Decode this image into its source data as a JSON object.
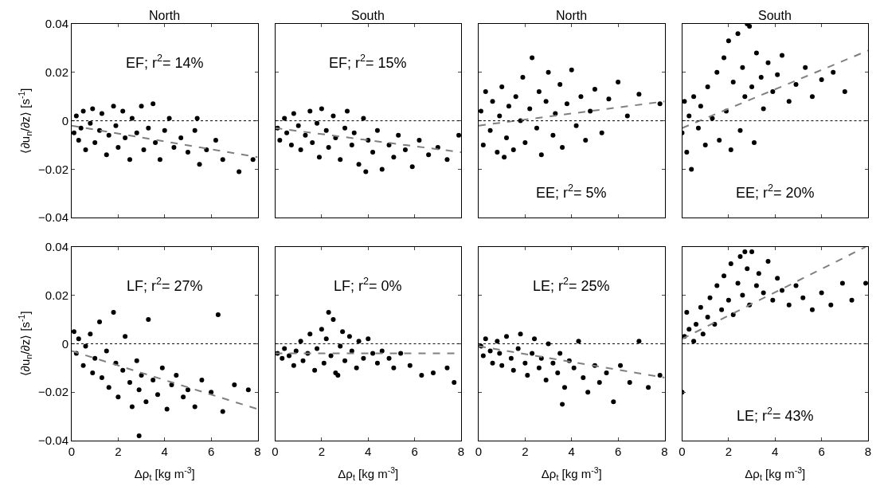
{
  "chart_data": [
    {
      "type": "scatter",
      "title": "North",
      "ylabel": "⟨∂u$_{n}$/∂z⟩ [s$^{-1}$]",
      "xlim": [
        0,
        8
      ],
      "xticks": [
        0,
        2,
        4,
        6,
        8
      ],
      "ylim": [
        -0.04,
        0.04
      ],
      "yticks": [
        -0.04,
        -0.02,
        0,
        0.02,
        0.04
      ],
      "tick_labels": "y",
      "annotations": [
        "EF; r$^{2}$= 14%"
      ],
      "ref_lines": [
        {
          "axis": "y",
          "value": 0,
          "color": "#000000",
          "line_style": "dotted"
        }
      ],
      "series": [
        {
          "type": "scatter",
          "color": "#000000",
          "marker": "circle",
          "x": [
            0.1,
            0.2,
            0.3,
            0.4,
            0.5,
            0.6,
            0.8,
            0.9,
            1.0,
            1.2,
            1.3,
            1.5,
            1.6,
            1.8,
            1.9,
            2.0,
            2.2,
            2.3,
            2.5,
            2.6,
            2.8,
            3.0,
            3.1,
            3.3,
            3.5,
            3.6,
            3.8,
            4.0,
            4.2,
            4.4,
            4.7,
            5.0,
            5.3,
            5.5,
            5.8,
            6.2,
            6.5,
            7.2,
            7.8,
            5.4
          ],
          "values": [
            -0.005,
            0.002,
            -0.008,
            -0.003,
            0.004,
            -0.012,
            -0.001,
            0.005,
            -0.009,
            -0.004,
            0.003,
            -0.014,
            -0.006,
            0.006,
            -0.002,
            -0.011,
            0.004,
            -0.007,
            -0.016,
            0.001,
            -0.005,
            0.006,
            -0.012,
            -0.003,
            0.007,
            -0.009,
            -0.016,
            -0.004,
            0.001,
            -0.011,
            -0.007,
            -0.013,
            -0.004,
            -0.018,
            -0.012,
            -0.008,
            -0.016,
            -0.021,
            -0.016,
            0.001
          ]
        },
        {
          "type": "line",
          "color": "#808080",
          "line_style": "dashed",
          "marker": "none",
          "x": [
            0,
            8
          ],
          "values": [
            -0.002,
            -0.015
          ]
        }
      ]
    },
    {
      "type": "scatter",
      "title": "South",
      "xlim": [
        0,
        8
      ],
      "xticks": [
        0,
        2,
        4,
        6,
        8
      ],
      "ylim": [
        -0.04,
        0.04
      ],
      "yticks": [
        -0.04,
        -0.02,
        0,
        0.02,
        0.04
      ],
      "tick_labels": false,
      "annotations": [
        "EF; r$^{2}$= 15%"
      ],
      "ref_lines": [
        {
          "axis": "y",
          "value": 0,
          "color": "#000000",
          "line_style": "dotted"
        }
      ],
      "series": [
        {
          "type": "scatter",
          "color": "#000000",
          "marker": "circle",
          "x": [
            0.1,
            0.2,
            0.4,
            0.5,
            0.7,
            0.8,
            1.0,
            1.1,
            1.3,
            1.5,
            1.6,
            1.8,
            1.9,
            2.0,
            2.2,
            2.3,
            2.5,
            2.6,
            2.8,
            3.0,
            3.1,
            3.3,
            3.4,
            3.6,
            3.8,
            4.0,
            4.2,
            4.4,
            4.6,
            4.9,
            5.1,
            5.3,
            5.6,
            5.9,
            6.2,
            6.6,
            7.0,
            7.4,
            7.9,
            3.9
          ],
          "values": [
            -0.003,
            -0.008,
            0.001,
            -0.005,
            -0.01,
            0.003,
            -0.002,
            -0.012,
            -0.006,
            0.004,
            -0.009,
            -0.001,
            -0.015,
            0.005,
            -0.004,
            -0.011,
            0.002,
            -0.007,
            -0.016,
            -0.003,
            0.004,
            -0.01,
            -0.005,
            -0.018,
            0.001,
            -0.008,
            -0.013,
            -0.004,
            -0.02,
            -0.01,
            -0.015,
            -0.006,
            -0.012,
            -0.019,
            -0.008,
            -0.014,
            -0.011,
            -0.016,
            -0.006,
            -0.021
          ]
        },
        {
          "type": "line",
          "color": "#808080",
          "line_style": "dashed",
          "marker": "none",
          "x": [
            0,
            8
          ],
          "values": [
            -0.003,
            -0.013
          ]
        }
      ]
    },
    {
      "type": "scatter",
      "title": "North",
      "xlim": [
        0,
        8
      ],
      "xticks": [
        0,
        2,
        4,
        6,
        8
      ],
      "ylim": [
        -0.04,
        0.04
      ],
      "yticks": [
        -0.04,
        -0.02,
        0,
        0.02,
        0.04
      ],
      "tick_labels": false,
      "annotations": [
        "EE; r$^{2}$= 5%"
      ],
      "ref_lines": [
        {
          "axis": "y",
          "value": 0,
          "color": "#000000",
          "line_style": "dotted"
        }
      ],
      "series": [
        {
          "type": "scatter",
          "color": "#000000",
          "marker": "circle",
          "x": [
            0.1,
            0.2,
            0.3,
            0.5,
            0.6,
            0.8,
            0.9,
            1.0,
            1.2,
            1.3,
            1.5,
            1.6,
            1.8,
            1.9,
            2.0,
            2.2,
            2.3,
            2.5,
            2.6,
            2.7,
            2.9,
            3.0,
            3.2,
            3.3,
            3.5,
            3.6,
            3.8,
            4.0,
            4.2,
            4.4,
            4.6,
            4.8,
            5.0,
            5.3,
            5.6,
            6.0,
            6.4,
            6.9,
            7.8,
            1.1
          ],
          "values": [
            0.004,
            -0.01,
            0.012,
            -0.004,
            0.008,
            -0.013,
            0.002,
            0.014,
            -0.007,
            0.006,
            -0.012,
            0.01,
            0.0,
            0.018,
            -0.009,
            0.005,
            0.026,
            -0.003,
            0.012,
            -0.014,
            0.008,
            0.02,
            -0.006,
            0.003,
            0.015,
            -0.011,
            0.007,
            0.021,
            -0.002,
            0.01,
            -0.008,
            0.004,
            0.013,
            -0.005,
            0.009,
            0.016,
            0.002,
            0.011,
            0.007,
            -0.015
          ]
        },
        {
          "type": "line",
          "color": "#808080",
          "line_style": "dashed",
          "marker": "none",
          "x": [
            0,
            8
          ],
          "values": [
            -0.002,
            0.008
          ]
        }
      ]
    },
    {
      "type": "scatter",
      "title": "South",
      "xlim": [
        0,
        8
      ],
      "xticks": [
        0,
        2,
        4,
        6,
        8
      ],
      "ylim": [
        -0.04,
        0.04
      ],
      "yticks": [
        -0.04,
        -0.02,
        0,
        0.02,
        0.04
      ],
      "tick_labels": false,
      "annotations": [
        "EE; r$^{2}$= 20%"
      ],
      "ref_lines": [
        {
          "axis": "y",
          "value": 0,
          "color": "#000000",
          "line_style": "dotted"
        }
      ],
      "series": [
        {
          "type": "scatter",
          "color": "#000000",
          "marker": "circle",
          "x": [
            0.0,
            0.1,
            0.2,
            0.3,
            0.4,
            0.5,
            0.7,
            0.8,
            1.0,
            1.1,
            1.3,
            1.5,
            1.6,
            1.8,
            1.9,
            2.0,
            2.1,
            2.2,
            2.4,
            2.5,
            2.6,
            2.7,
            2.8,
            3.0,
            3.1,
            3.2,
            3.4,
            3.5,
            3.7,
            3.9,
            4.1,
            4.3,
            4.6,
            4.9,
            5.3,
            5.6,
            6.0,
            6.5,
            7.0,
            2.9
          ],
          "values": [
            -0.005,
            0.008,
            -0.013,
            0.002,
            -0.02,
            0.01,
            -0.003,
            0.006,
            -0.01,
            0.014,
            0.001,
            0.02,
            -0.008,
            0.026,
            0.004,
            0.033,
            -0.012,
            0.016,
            0.036,
            -0.004,
            0.022,
            0.01,
            0.04,
            0.014,
            -0.009,
            0.028,
            0.018,
            0.005,
            0.024,
            0.012,
            0.019,
            0.027,
            0.008,
            0.015,
            0.022,
            0.01,
            0.017,
            0.02,
            0.012,
            0.039
          ]
        },
        {
          "type": "line",
          "color": "#808080",
          "line_style": "dashed",
          "marker": "none",
          "x": [
            0,
            8
          ],
          "values": [
            -0.003,
            0.029
          ]
        }
      ]
    },
    {
      "type": "scatter",
      "ylabel": "⟨∂u$_{n}$/∂z⟩ [s$^{-1}$]",
      "xlabel": "Δρ$_{t}$ [kg m$^{-3}$]",
      "xlim": [
        0,
        8
      ],
      "xticks": [
        0,
        2,
        4,
        6,
        8
      ],
      "ylim": [
        -0.04,
        0.04
      ],
      "yticks": [
        -0.04,
        -0.02,
        0,
        0.02,
        0.04
      ],
      "annotations": [
        "LF; r$^{2}$= 27%"
      ],
      "ref_lines": [
        {
          "axis": "y",
          "value": 0,
          "color": "#000000",
          "line_style": "dotted"
        }
      ],
      "series": [
        {
          "type": "scatter",
          "color": "#000000",
          "marker": "circle",
          "x": [
            0.1,
            0.2,
            0.3,
            0.5,
            0.6,
            0.8,
            0.9,
            1.0,
            1.2,
            1.3,
            1.5,
            1.6,
            1.8,
            1.9,
            2.0,
            2.2,
            2.3,
            2.5,
            2.6,
            2.8,
            2.9,
            3.0,
            3.2,
            3.3,
            3.5,
            3.7,
            3.9,
            4.1,
            4.3,
            4.5,
            4.8,
            5.0,
            5.3,
            5.6,
            6.0,
            6.3,
            6.5,
            7.0,
            7.6,
            2.9
          ],
          "values": [
            0.005,
            -0.004,
            0.002,
            -0.009,
            -0.001,
            0.004,
            -0.012,
            -0.006,
            0.009,
            -0.014,
            -0.003,
            -0.018,
            0.013,
            -0.008,
            -0.022,
            -0.011,
            0.003,
            -0.016,
            -0.026,
            -0.007,
            -0.019,
            -0.013,
            -0.024,
            0.01,
            -0.015,
            -0.021,
            -0.01,
            -0.027,
            -0.017,
            -0.013,
            -0.022,
            -0.019,
            -0.026,
            -0.015,
            -0.02,
            0.012,
            -0.028,
            -0.017,
            -0.019,
            -0.038
          ]
        },
        {
          "type": "line",
          "color": "#808080",
          "line_style": "dashed",
          "marker": "none",
          "x": [
            0,
            8
          ],
          "values": [
            -0.003,
            -0.027
          ]
        }
      ]
    },
    {
      "type": "scatter",
      "xlabel": "Δρ$_{t}$ [kg m$^{-3}$]",
      "xlim": [
        0,
        8
      ],
      "xticks": [
        0,
        2,
        4,
        6,
        8
      ],
      "ylim": [
        -0.04,
        0.04
      ],
      "yticks": [
        -0.04,
        -0.02,
        0,
        0.02,
        0.04
      ],
      "tick_labels": "x",
      "annotations": [
        "LF; r$^{2}$= 0%"
      ],
      "ref_lines": [
        {
          "axis": "y",
          "value": 0,
          "color": "#000000",
          "line_style": "dotted"
        }
      ],
      "series": [
        {
          "type": "scatter",
          "color": "#000000",
          "marker": "circle",
          "x": [
            0.1,
            0.3,
            0.4,
            0.6,
            0.8,
            0.9,
            1.1,
            1.2,
            1.4,
            1.5,
            1.7,
            1.8,
            2.0,
            2.1,
            2.2,
            2.4,
            2.5,
            2.6,
            2.8,
            2.9,
            3.0,
            3.2,
            3.3,
            3.5,
            3.6,
            3.8,
            4.0,
            4.2,
            4.4,
            4.6,
            4.9,
            5.1,
            5.4,
            5.8,
            6.3,
            6.8,
            7.4,
            7.7,
            2.3,
            2.7
          ],
          "values": [
            -0.004,
            -0.006,
            -0.002,
            -0.005,
            -0.009,
            -0.003,
            0.001,
            -0.007,
            -0.004,
            0.004,
            -0.011,
            -0.002,
            0.006,
            -0.008,
            0.002,
            -0.005,
            0.01,
            -0.012,
            -0.001,
            0.005,
            -0.007,
            0.003,
            -0.003,
            -0.01,
            0.001,
            -0.006,
            0.002,
            -0.004,
            -0.008,
            -0.003,
            -0.006,
            -0.01,
            -0.004,
            -0.009,
            -0.013,
            -0.012,
            -0.01,
            -0.016,
            0.013,
            -0.013
          ]
        },
        {
          "type": "line",
          "color": "#808080",
          "line_style": "dashed",
          "marker": "none",
          "x": [
            0,
            8
          ],
          "values": [
            -0.004,
            -0.004
          ]
        }
      ]
    },
    {
      "type": "scatter",
      "xlabel": "Δρ$_{t}$ [kg m$^{-3}$]",
      "xlim": [
        0,
        8
      ],
      "xticks": [
        0,
        2,
        4,
        6,
        8
      ],
      "ylim": [
        -0.04,
        0.04
      ],
      "yticks": [
        -0.04,
        -0.02,
        0,
        0.02,
        0.04
      ],
      "tick_labels": "x",
      "annotations": [
        "LE; r$^{2}$= 25%"
      ],
      "ref_lines": [
        {
          "axis": "y",
          "value": 0,
          "color": "#000000",
          "line_style": "dotted"
        }
      ],
      "series": [
        {
          "type": "scatter",
          "color": "#000000",
          "marker": "circle",
          "x": [
            0.1,
            0.2,
            0.3,
            0.5,
            0.6,
            0.8,
            0.9,
            1.0,
            1.2,
            1.4,
            1.5,
            1.7,
            1.8,
            2.0,
            2.1,
            2.3,
            2.4,
            2.6,
            2.7,
            2.9,
            3.0,
            3.2,
            3.4,
            3.5,
            3.7,
            3.9,
            4.1,
            4.3,
            4.5,
            4.7,
            5.0,
            5.2,
            5.5,
            5.8,
            6.1,
            6.5,
            6.9,
            7.3,
            7.8,
            3.6
          ],
          "values": [
            -0.001,
            -0.005,
            0.002,
            -0.003,
            -0.008,
            0.001,
            -0.004,
            -0.009,
            0.003,
            -0.006,
            -0.011,
            -0.002,
            0.004,
            -0.008,
            -0.013,
            -0.004,
            0.002,
            -0.01,
            -0.006,
            -0.015,
            0.0,
            -0.008,
            -0.012,
            -0.004,
            -0.018,
            -0.007,
            -0.01,
            0.001,
            -0.014,
            -0.02,
            -0.009,
            -0.016,
            -0.012,
            -0.024,
            -0.009,
            -0.016,
            0.001,
            -0.018,
            -0.013,
            -0.025
          ]
        },
        {
          "type": "line",
          "color": "#808080",
          "line_style": "dashed",
          "marker": "none",
          "x": [
            0,
            8
          ],
          "values": [
            -0.001,
            -0.014
          ]
        }
      ]
    },
    {
      "type": "scatter",
      "xlabel": "Δρ$_{t}$ [kg m$^{-3}$]",
      "xlim": [
        0,
        8
      ],
      "xticks": [
        0,
        2,
        4,
        6,
        8
      ],
      "ylim": [
        -0.04,
        0.04
      ],
      "yticks": [
        -0.04,
        -0.02,
        0,
        0.02,
        0.04
      ],
      "tick_labels": "x",
      "annotations": [
        "LE; r$^{2}$= 43%"
      ],
      "ref_lines": [
        {
          "axis": "y",
          "value": 0,
          "color": "#000000",
          "line_style": "dotted"
        }
      ],
      "series": [
        {
          "type": "scatter",
          "color": "#000000",
          "marker": "circle",
          "x": [
            0.0,
            0.1,
            0.2,
            0.3,
            0.5,
            0.6,
            0.8,
            0.9,
            1.1,
            1.2,
            1.4,
            1.5,
            1.7,
            1.8,
            2.0,
            2.1,
            2.2,
            2.4,
            2.5,
            2.6,
            2.8,
            2.9,
            3.0,
            3.2,
            3.3,
            3.5,
            3.7,
            3.9,
            4.1,
            4.3,
            4.6,
            4.9,
            5.2,
            5.6,
            6.0,
            6.4,
            6.9,
            7.3,
            7.9,
            2.7
          ],
          "values": [
            -0.02,
            0.003,
            0.013,
            0.006,
            0.001,
            0.008,
            0.015,
            0.004,
            0.011,
            0.019,
            0.008,
            0.024,
            0.014,
            0.028,
            0.018,
            0.033,
            0.012,
            0.025,
            0.036,
            0.02,
            0.031,
            0.016,
            0.038,
            0.024,
            0.029,
            0.021,
            0.034,
            0.018,
            0.027,
            0.022,
            0.016,
            0.024,
            0.019,
            0.014,
            0.021,
            0.016,
            0.025,
            0.018,
            0.025,
            0.038
          ]
        },
        {
          "type": "line",
          "color": "#808080",
          "line_style": "dashed",
          "marker": "none",
          "x": [
            0,
            7.9
          ],
          "values": [
            0.002,
            0.04
          ]
        }
      ]
    }
  ]
}
